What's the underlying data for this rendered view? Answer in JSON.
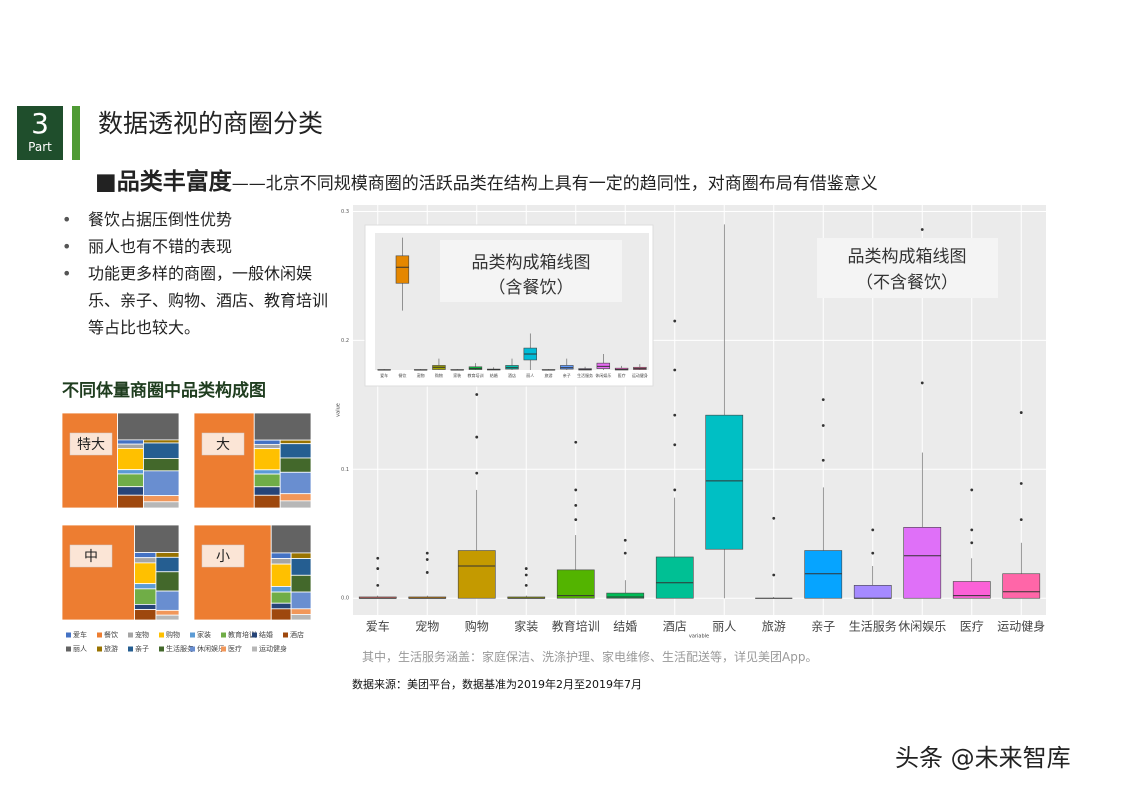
{
  "section": {
    "number": "3",
    "label": "Part",
    "title": "数据透视的商圈分类"
  },
  "headline": {
    "lead": "■品类丰富度",
    "text": "——北京不同规模商圈的活跃品类在结构上具有一定的趋同性，对商圈布局有借鉴意义"
  },
  "bullets": [
    "餐饮占据压倒性优势",
    "丽人也有不错的表现",
    "功能更多样的商圈，一般休闲娱乐、亲子、购物、酒店、教育培训等占比也较大。"
  ],
  "note": "其中，生活服务涵盖：家庭保洁、洗涤护理、家电维修、生活配送等，详见美团App。",
  "source": "数据来源：美团平台，数据基准为2019年2月至2019年7月",
  "watermark": "头条 @未来智库",
  "chart_data": [
    {
      "type": "box",
      "title": "品类构成箱线图",
      "subtitle": "（不含餐饮）",
      "x_label": "variable",
      "y_label": "value",
      "categories": [
        "爱车",
        "宠物",
        "购物",
        "家装",
        "教育培训",
        "结婚",
        "酒店",
        "丽人",
        "旅游",
        "亲子",
        "生活服务",
        "休闲娱乐",
        "医疗",
        "运动健身"
      ],
      "colors": [
        "#F8766D",
        "#E38900",
        "#C49A00",
        "#99A800",
        "#53B400",
        "#00BC56",
        "#00C094",
        "#00BFC4",
        "#00B6EB",
        "#06A4FF",
        "#A58AFF",
        "#DF70F8",
        "#FB61D7",
        "#FF66A8"
      ],
      "boxes": [
        {
          "min": 0,
          "q1": 0,
          "median": 0,
          "q3": 0.001,
          "max": 0.002,
          "outliers": [
            0.01,
            0.023,
            0.031
          ]
        },
        {
          "min": 0,
          "q1": 0,
          "median": 0,
          "q3": 0.001,
          "max": 0.002,
          "outliers": [
            0.02,
            0.03,
            0.035
          ]
        },
        {
          "min": 0,
          "q1": 0,
          "median": 0.025,
          "q3": 0.037,
          "max": 0.084,
          "outliers": [
            0.097,
            0.125,
            0.158
          ]
        },
        {
          "min": 0,
          "q1": 0,
          "median": 0,
          "q3": 0.001,
          "max": 0.002,
          "outliers": [
            0.01,
            0.018,
            0.023
          ]
        },
        {
          "min": 0,
          "q1": 0,
          "median": 0.002,
          "q3": 0.022,
          "max": 0.049,
          "outliers": [
            0.061,
            0.072,
            0.084,
            0.121
          ]
        },
        {
          "min": 0,
          "q1": 0,
          "median": 0.001,
          "q3": 0.004,
          "max": 0.014,
          "outliers": [
            0.035,
            0.045
          ]
        },
        {
          "min": 0,
          "q1": 0,
          "median": 0.012,
          "q3": 0.032,
          "max": 0.078,
          "outliers": [
            0.084,
            0.119,
            0.142,
            0.177,
            0.215
          ]
        },
        {
          "min": 0,
          "q1": 0.038,
          "median": 0.091,
          "q3": 0.142,
          "max": 0.29,
          "outliers": []
        },
        {
          "min": 0,
          "q1": 0,
          "median": 0,
          "q3": 0,
          "max": 0.001,
          "outliers": [
            0.018,
            0.062
          ]
        },
        {
          "min": 0,
          "q1": 0,
          "median": 0.019,
          "q3": 0.037,
          "max": 0.086,
          "outliers": [
            0.107,
            0.134,
            0.154
          ]
        },
        {
          "min": 0,
          "q1": 0,
          "median": 0,
          "q3": 0.01,
          "max": 0.025,
          "outliers": [
            0.035,
            0.053
          ]
        },
        {
          "min": 0,
          "q1": 0,
          "median": 0.033,
          "q3": 0.055,
          "max": 0.113,
          "outliers": [
            0.167,
            0.286
          ]
        },
        {
          "min": 0,
          "q1": 0,
          "median": 0.002,
          "q3": 0.013,
          "max": 0.031,
          "outliers": [
            0.043,
            0.053,
            0.084
          ]
        },
        {
          "min": 0,
          "q1": 0,
          "median": 0.005,
          "q3": 0.019,
          "max": 0.043,
          "outliers": [
            0.061,
            0.089,
            0.144
          ]
        }
      ],
      "ylim": [
        -0.013,
        0.305
      ],
      "yticks": [
        {
          "value": 0,
          "label": "0.0"
        },
        {
          "value": 0.1,
          "label": "0.1"
        },
        {
          "value": 0.2,
          "label": "0.2"
        },
        {
          "value": 0.3,
          "label": "0.3"
        }
      ],
      "grid": true
    },
    {
      "type": "box",
      "title": "品类构成箱线图",
      "subtitle": "（含餐饮）",
      "categories": [
        "爱车",
        "餐饮",
        "宠物",
        "购物",
        "家装",
        "教育培训",
        "结婚",
        "酒店",
        "丽人",
        "旅游",
        "亲子",
        "生活服务",
        "休闲娱乐",
        "医疗",
        "运动健身"
      ],
      "colors": [
        "#F8766D",
        "#E58700",
        "#C99800",
        "#A3A500",
        "#6BB100",
        "#00BA38",
        "#00BF7D",
        "#00C0AF",
        "#00BCD8",
        "#00B0F6",
        "#619CFF",
        "#B983FF",
        "#E76BF3",
        "#FD61D1",
        "#FF67A4"
      ],
      "boxes": [
        {
          "min": 0,
          "q1": 0,
          "median": 0,
          "q3": 0.002,
          "max": 0.004
        },
        {
          "min": 0.26,
          "q1": 0.38,
          "median": 0.45,
          "q3": 0.5,
          "max": 0.58
        },
        {
          "min": 0,
          "q1": 0,
          "median": 0,
          "q3": 0.002,
          "max": 0.004
        },
        {
          "min": 0,
          "q1": 0.002,
          "median": 0.012,
          "q3": 0.02,
          "max": 0.05
        },
        {
          "min": 0,
          "q1": 0,
          "median": 0,
          "q3": 0.002,
          "max": 0.004
        },
        {
          "min": 0,
          "q1": 0.002,
          "median": 0.006,
          "q3": 0.014,
          "max": 0.03
        },
        {
          "min": 0,
          "q1": 0,
          "median": 0.002,
          "q3": 0.004,
          "max": 0.012
        },
        {
          "min": 0,
          "q1": 0.004,
          "median": 0.01,
          "q3": 0.02,
          "max": 0.05
        },
        {
          "min": 0,
          "q1": 0.044,
          "median": 0.07,
          "q3": 0.096,
          "max": 0.16
        },
        {
          "min": 0,
          "q1": 0,
          "median": 0,
          "q3": 0.002,
          "max": 0.004
        },
        {
          "min": 0,
          "q1": 0.004,
          "median": 0.01,
          "q3": 0.02,
          "max": 0.05
        },
        {
          "min": 0,
          "q1": 0,
          "median": 0.002,
          "q3": 0.006,
          "max": 0.014
        },
        {
          "min": 0,
          "q1": 0.006,
          "median": 0.016,
          "q3": 0.03,
          "max": 0.07
        },
        {
          "min": 0,
          "q1": 0,
          "median": 0.002,
          "q3": 0.008,
          "max": 0.018
        },
        {
          "min": 0,
          "q1": 0.002,
          "median": 0.006,
          "q3": 0.012,
          "max": 0.026
        }
      ],
      "ylim": [
        0,
        0.6
      ]
    },
    {
      "type": "treemap",
      "title": "不同体量商圈中品类构成图",
      "categories": [
        "爱车",
        "餐饮",
        "宠物",
        "购物",
        "家装",
        "教育培训",
        "结婚",
        "酒店",
        "丽人",
        "旅游",
        "亲子",
        "生活服务",
        "休闲娱乐",
        "医疗",
        "运动健身"
      ],
      "colors": [
        "#4472c4",
        "#ed7d31",
        "#a5a5a5",
        "#ffc000",
        "#5b9bd5",
        "#70ad47",
        "#264478",
        "#9e480e",
        "#636363",
        "#997300",
        "#255e91",
        "#43682b",
        "#698ed0",
        "#f1975a",
        "#b7b7b7"
      ],
      "panels": [
        {
          "label": "特大",
          "values": [
            1,
            48,
            1,
            5,
            1,
            3,
            2,
            3,
            15,
            1,
            5,
            4,
            8,
            2,
            2
          ]
        },
        {
          "label": "大",
          "values": [
            1,
            52,
            1,
            5,
            1,
            3,
            2,
            3,
            14,
            1,
            4,
            4,
            6,
            2,
            2
          ]
        },
        {
          "label": "中",
          "values": [
            1,
            62,
            1,
            4,
            1,
            3,
            1,
            2,
            11,
            1,
            3,
            4,
            4,
            1,
            1
          ]
        },
        {
          "label": "小",
          "values": [
            1,
            66,
            1,
            4,
            1,
            2,
            1,
            2,
            10,
            1,
            3,
            3,
            3,
            1,
            1
          ]
        }
      ]
    }
  ]
}
